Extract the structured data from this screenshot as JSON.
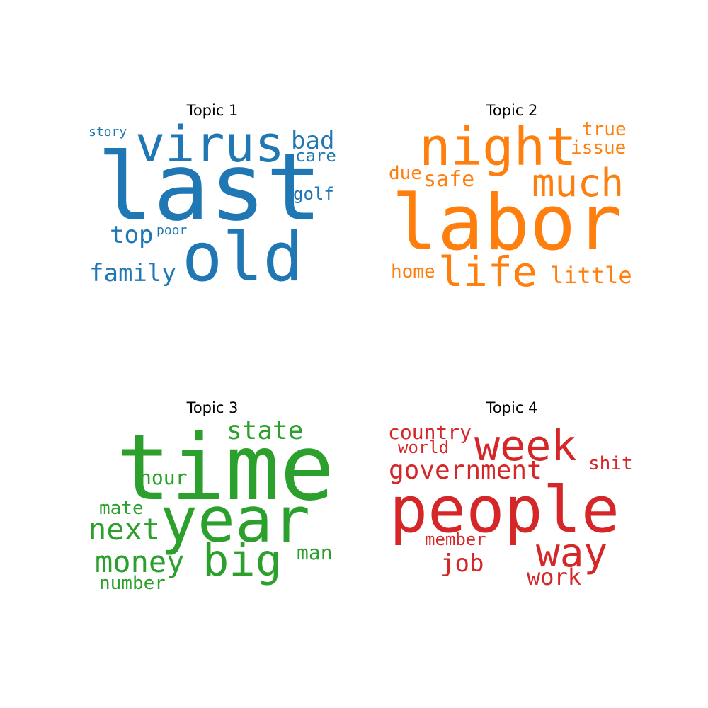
{
  "topics": [
    {
      "title": "Topic 1",
      "color": "#1f77b4",
      "words": [
        "last",
        "old",
        "virus",
        "bad",
        "care",
        "golf",
        "story",
        "top",
        "poor",
        "family"
      ]
    },
    {
      "title": "Topic 2",
      "color": "#ff7f0e",
      "words": [
        "labor",
        "night",
        "much",
        "life",
        "true",
        "issue",
        "due",
        "safe",
        "home",
        "little"
      ]
    },
    {
      "title": "Topic 3",
      "color": "#2ca02c",
      "words": [
        "time",
        "year",
        "state",
        "big",
        "next",
        "money",
        "hour",
        "mate",
        "man",
        "number"
      ]
    },
    {
      "title": "Topic 4",
      "color": "#d62728",
      "words": [
        "people",
        "week",
        "way",
        "government",
        "country",
        "world",
        "shit",
        "member",
        "job",
        "work"
      ]
    }
  ]
}
